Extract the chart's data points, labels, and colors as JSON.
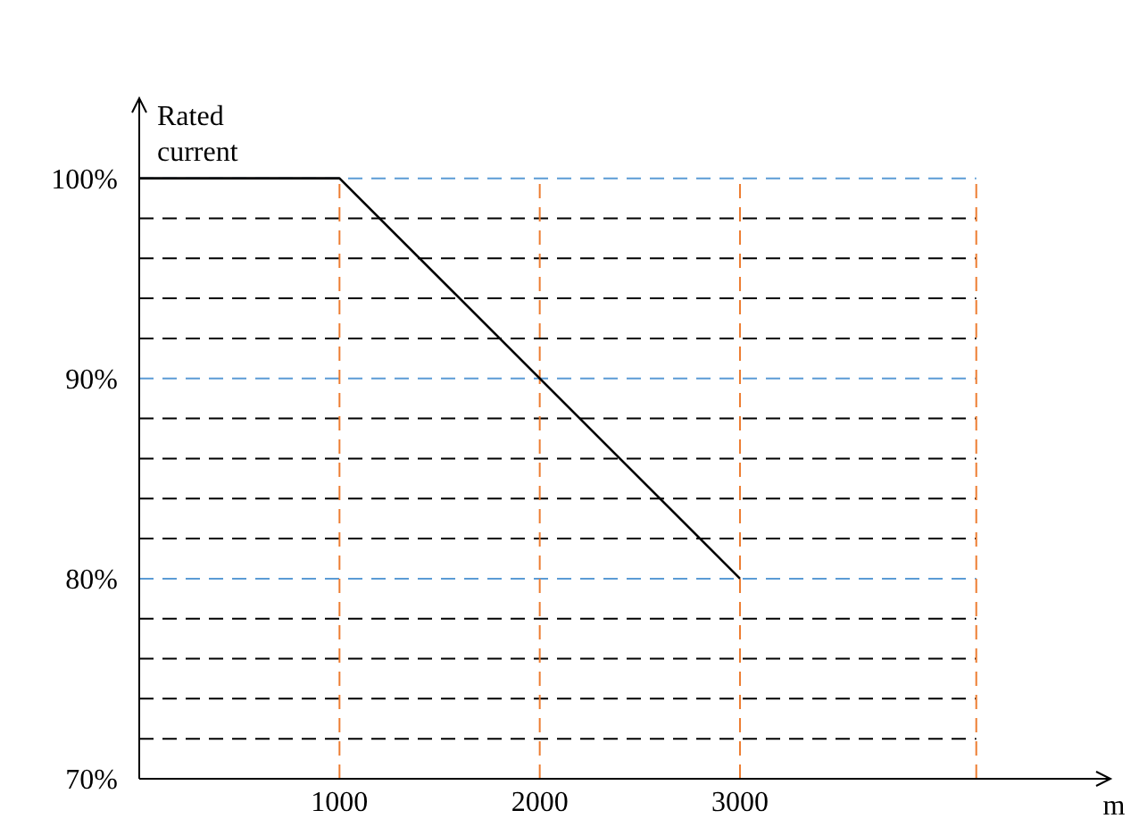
{
  "chart_data": {
    "type": "line",
    "xlabel": "m",
    "ylabel": "Rated current",
    "x": [
      0,
      1000,
      3000
    ],
    "series": [
      {
        "color": "#000000",
        "values": [
          100,
          100,
          80
        ]
      }
    ],
    "xlim": [
      0,
      4850
    ],
    "xticks": [
      1000,
      2000,
      3000
    ],
    "ylim": [
      70,
      104
    ],
    "yticks": [
      {
        "value": 70,
        "label": "70%"
      },
      {
        "value": 72,
        "label": null
      },
      {
        "value": 74,
        "label": null
      },
      {
        "value": 76,
        "label": null
      },
      {
        "value": 78,
        "label": null
      },
      {
        "value": 80,
        "label": "80%"
      },
      {
        "value": 82,
        "label": null
      },
      {
        "value": 84,
        "label": null
      },
      {
        "value": 86,
        "label": null
      },
      {
        "value": 88,
        "label": null
      },
      {
        "value": 90,
        "label": "90%"
      },
      {
        "value": 92,
        "label": null
      },
      {
        "value": 94,
        "label": null
      },
      {
        "value": 96,
        "label": null
      },
      {
        "value": 98,
        "label": null
      },
      {
        "value": 100,
        "label": "100%"
      }
    ],
    "grid": true,
    "marker": "none",
    "line_style": "solid",
    "ref_lines": [
      {
        "axis": "x",
        "value": 4180,
        "label": null,
        "color": "#ed7d31",
        "line_style": "dashed"
      }
    ]
  }
}
